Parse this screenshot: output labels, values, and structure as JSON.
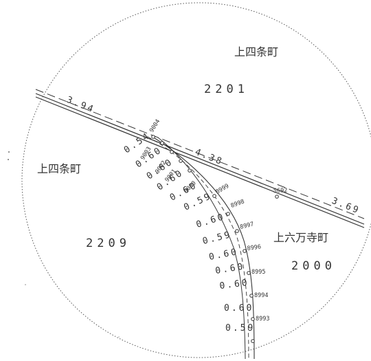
{
  "map": {
    "area_names": {
      "north": "上四条町",
      "west": "上四条町",
      "east": "上六万寺町"
    },
    "lot_numbers": {
      "north": "2201",
      "west": "2209",
      "east": "2000"
    },
    "road_distances": [
      "3.94",
      "4.38",
      "3.69"
    ],
    "curve_distances": [
      "0.54",
      "0.60",
      "0.60",
      "0.60",
      "0.60",
      "0.59",
      "0.60",
      "0.59",
      "0.60",
      "0.60",
      "0.60",
      "0.60",
      "0.59"
    ],
    "points": [
      "9004",
      "9003",
      "9002",
      "9001",
      "9000",
      "8999",
      "8998",
      "8997",
      "8996",
      "8995",
      "8994",
      "8993",
      "5692"
    ]
  }
}
